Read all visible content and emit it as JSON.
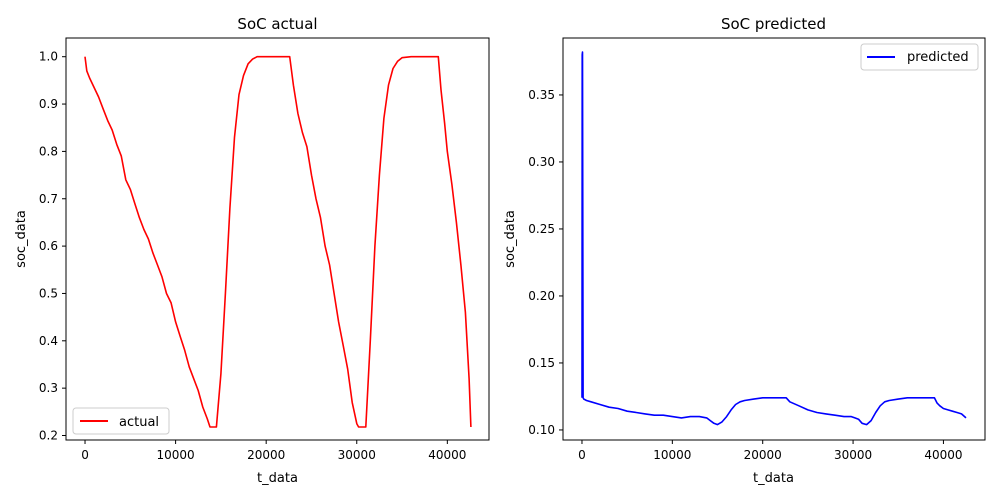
{
  "chart_data": [
    {
      "type": "line",
      "title": "SoC actual",
      "xlabel": "t_data",
      "ylabel": "soc_data",
      "xlim": [
        -2100,
        44600
      ],
      "ylim": [
        0.1905,
        1.0395
      ],
      "xticks": [
        0,
        10000,
        20000,
        30000,
        40000
      ],
      "yticks": [
        0.2,
        0.3,
        0.4,
        0.5,
        0.6,
        0.7,
        0.8,
        0.9,
        1.0
      ],
      "xtick_labels": [
        "0",
        "10000",
        "20000",
        "30000",
        "40000"
      ],
      "ytick_labels": [
        "0.2",
        "0.3",
        "0.4",
        "0.5",
        "0.6",
        "0.7",
        "0.8",
        "0.9",
        "1.0"
      ],
      "grid": false,
      "legend": "lower left",
      "series": [
        {
          "name": "actual",
          "color": "#ff0000",
          "x": [
            0,
            200,
            500,
            1000,
            1500,
            2000,
            2500,
            3000,
            3500,
            4000,
            4500,
            5000,
            5500,
            6000,
            6500,
            7000,
            7500,
            8000,
            8500,
            9000,
            9500,
            10000,
            10500,
            11000,
            11500,
            12000,
            12500,
            13000,
            13500,
            13800,
            14000,
            14200,
            14500,
            15000,
            15500,
            16000,
            16500,
            17000,
            17500,
            18000,
            18500,
            19000,
            20000,
            21000,
            22000,
            22600,
            23000,
            23500,
            24000,
            24500,
            25000,
            25500,
            26000,
            26500,
            27000,
            27500,
            28000,
            28500,
            29000,
            29500,
            30000,
            30200,
            30500,
            31000,
            31500,
            32000,
            32500,
            33000,
            33500,
            34000,
            34500,
            35000,
            36000,
            37000,
            38000,
            39000,
            39300,
            39700,
            40000,
            40500,
            41000,
            41500,
            42000,
            42400,
            42600
          ],
          "y": [
            1.0,
            0.97,
            0.955,
            0.935,
            0.915,
            0.89,
            0.865,
            0.845,
            0.815,
            0.79,
            0.74,
            0.72,
            0.69,
            0.66,
            0.635,
            0.615,
            0.585,
            0.56,
            0.535,
            0.5,
            0.48,
            0.44,
            0.41,
            0.38,
            0.345,
            0.32,
            0.295,
            0.26,
            0.235,
            0.218,
            0.218,
            0.218,
            0.218,
            0.33,
            0.5,
            0.68,
            0.83,
            0.92,
            0.96,
            0.985,
            0.995,
            1.0,
            1.0,
            1.0,
            1.0,
            1.0,
            0.94,
            0.88,
            0.84,
            0.81,
            0.75,
            0.7,
            0.66,
            0.6,
            0.56,
            0.5,
            0.44,
            0.39,
            0.34,
            0.27,
            0.225,
            0.218,
            0.218,
            0.218,
            0.4,
            0.6,
            0.75,
            0.87,
            0.94,
            0.975,
            0.99,
            0.998,
            1.0,
            1.0,
            1.0,
            1.0,
            0.93,
            0.86,
            0.8,
            0.73,
            0.65,
            0.56,
            0.46,
            0.32,
            0.218
          ]
        }
      ]
    },
    {
      "type": "line",
      "title": "SoC predicted",
      "xlabel": "t_data",
      "ylabel": "soc_data",
      "xlim": [
        -2100,
        44600
      ],
      "ylim": [
        0.0925,
        0.3925
      ],
      "xticks": [
        0,
        10000,
        20000,
        30000,
        40000
      ],
      "yticks": [
        0.1,
        0.15,
        0.2,
        0.25,
        0.3,
        0.35
      ],
      "xtick_labels": [
        "0",
        "10000",
        "20000",
        "30000",
        "40000"
      ],
      "ytick_labels": [
        "0.10",
        "0.15",
        "0.20",
        "0.25",
        "0.30",
        "0.35"
      ],
      "grid": false,
      "legend": "upper right",
      "series": [
        {
          "name": "predicted",
          "color": "#0000ff",
          "x": [
            0,
            30,
            60,
            120,
            200,
            500,
            1000,
            2000,
            3000,
            4000,
            5000,
            6000,
            7000,
            8000,
            9000,
            10000,
            11000,
            12000,
            13000,
            13800,
            14200,
            14600,
            15000,
            15500,
            16000,
            16500,
            17000,
            17500,
            18000,
            19000,
            20000,
            21000,
            22000,
            22600,
            23000,
            24000,
            25000,
            26000,
            27000,
            28000,
            29000,
            29800,
            30200,
            30600,
            31000,
            31500,
            32000,
            32500,
            33000,
            33500,
            34000,
            35000,
            36000,
            37000,
            38000,
            39000,
            39300,
            39600,
            40000,
            40500,
            41000,
            41500,
            42000,
            42500
          ],
          "y": [
            0.124,
            0.38,
            0.382,
            0.124,
            0.123,
            0.122,
            0.121,
            0.119,
            0.117,
            0.116,
            0.114,
            0.113,
            0.112,
            0.111,
            0.111,
            0.11,
            0.109,
            0.11,
            0.11,
            0.109,
            0.107,
            0.105,
            0.104,
            0.106,
            0.11,
            0.115,
            0.119,
            0.121,
            0.122,
            0.123,
            0.124,
            0.124,
            0.124,
            0.124,
            0.121,
            0.118,
            0.115,
            0.113,
            0.112,
            0.111,
            0.11,
            0.11,
            0.109,
            0.108,
            0.105,
            0.104,
            0.107,
            0.113,
            0.118,
            0.121,
            0.122,
            0.123,
            0.124,
            0.124,
            0.124,
            0.124,
            0.12,
            0.118,
            0.116,
            0.115,
            0.114,
            0.113,
            0.112,
            0.109
          ]
        }
      ]
    }
  ]
}
